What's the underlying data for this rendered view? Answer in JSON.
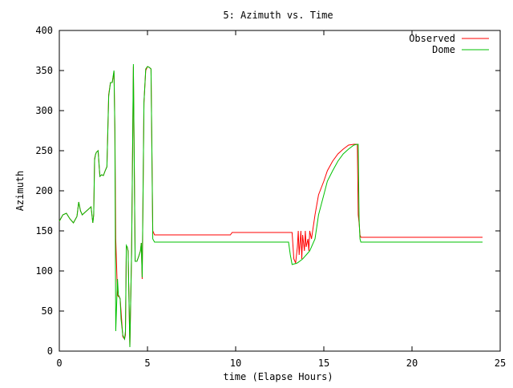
{
  "chart_data": {
    "type": "line",
    "title": "5: Azimuth vs. Time",
    "xlabel": "time (Elapse Hours)",
    "ylabel": "Azimuth",
    "xlim": [
      0,
      25
    ],
    "ylim": [
      0,
      400
    ],
    "xticks": [
      0,
      5,
      10,
      15,
      20,
      25
    ],
    "yticks": [
      0,
      50,
      100,
      150,
      200,
      250,
      300,
      350,
      400
    ],
    "grid": false,
    "legend_position": "top-right",
    "series": [
      {
        "name": "Observed",
        "color": "#ff0000",
        "x": [
          0,
          0.2,
          0.4,
          0.6,
          0.8,
          1.0,
          1.1,
          1.2,
          1.3,
          1.4,
          1.6,
          1.8,
          1.9,
          1.95,
          2.0,
          2.05,
          2.1,
          2.2,
          2.3,
          2.4,
          2.5,
          2.6,
          2.7,
          2.8,
          2.9,
          3.0,
          3.1,
          3.15,
          3.2,
          3.3,
          3.35,
          3.4,
          3.45,
          3.5,
          3.6,
          3.7,
          3.75,
          3.8,
          3.85,
          3.9,
          4.0,
          4.1,
          4.2,
          4.3,
          4.4,
          4.5,
          4.6,
          4.65,
          4.7,
          4.8,
          4.9,
          5.0,
          5.1,
          5.2,
          5.25,
          5.3,
          5.4,
          5.5,
          5.55,
          5.6,
          5.65,
          5.7,
          5.8,
          6.0,
          9.7,
          9.8,
          13.0,
          13.1,
          13.2,
          13.3,
          13.4,
          13.5,
          13.55,
          13.6,
          13.7,
          13.75,
          13.8,
          13.9,
          13.95,
          14.0,
          14.1,
          14.15,
          14.2,
          14.3,
          14.4,
          14.5,
          14.7,
          15.0,
          15.2,
          15.5,
          15.8,
          16.1,
          16.4,
          16.7,
          16.9,
          16.95,
          17.0,
          17.05,
          17.1,
          18.0,
          24.0
        ],
        "values": [
          162,
          170,
          172,
          165,
          160,
          168,
          186,
          175,
          170,
          172,
          176,
          180,
          160,
          170,
          240,
          245,
          248,
          250,
          218,
          220,
          219,
          225,
          230,
          320,
          335,
          335,
          348,
          280,
          140,
          70,
          68,
          68,
          65,
          50,
          18,
          15,
          20,
          130,
          130,
          125,
          5,
          125,
          355,
          112,
          112,
          118,
          125,
          135,
          90,
          310,
          350,
          355,
          354,
          352,
          250,
          150,
          145,
          145,
          145,
          145,
          145,
          145,
          145,
          145,
          145,
          148,
          148,
          148,
          148,
          115,
          110,
          130,
          150,
          120,
          150,
          115,
          145,
          125,
          150,
          130,
          140,
          125,
          150,
          140,
          155,
          170,
          195,
          212,
          225,
          237,
          246,
          252,
          257,
          258,
          258,
          170,
          160,
          145,
          142,
          142,
          142
        ]
      },
      {
        "name": "Dome",
        "color": "#00c000",
        "x": [
          0,
          0.2,
          0.4,
          0.6,
          0.8,
          1.0,
          1.1,
          1.2,
          1.3,
          1.4,
          1.6,
          1.8,
          1.9,
          1.95,
          2.0,
          2.05,
          2.1,
          2.2,
          2.3,
          2.4,
          2.5,
          2.6,
          2.7,
          2.8,
          2.9,
          3.0,
          3.1,
          3.15,
          3.2,
          3.3,
          3.35,
          3.4,
          3.45,
          3.5,
          3.6,
          3.7,
          3.75,
          3.8,
          3.85,
          3.9,
          4.0,
          4.1,
          4.2,
          4.3,
          4.4,
          4.5,
          4.6,
          4.65,
          4.7,
          4.8,
          4.9,
          5.0,
          5.1,
          5.2,
          5.25,
          5.3,
          5.4,
          5.5,
          5.55,
          5.6,
          5.65,
          5.7,
          6.0,
          13.0,
          13.1,
          13.2,
          13.5,
          13.8,
          14.0,
          14.2,
          14.5,
          14.7,
          15.0,
          15.2,
          15.5,
          15.8,
          16.1,
          16.4,
          16.7,
          16.9,
          16.95,
          17.0,
          17.05,
          17.1,
          18.0,
          24.0
        ],
        "values": [
          162,
          170,
          172,
          165,
          160,
          168,
          186,
          175,
          170,
          172,
          176,
          180,
          160,
          170,
          238,
          245,
          248,
          250,
          218,
          220,
          219,
          225,
          230,
          318,
          335,
          335,
          350,
          275,
          25,
          90,
          70,
          68,
          65,
          40,
          20,
          15,
          25,
          132,
          130,
          125,
          5,
          125,
          358,
          112,
          112,
          118,
          125,
          135,
          92,
          310,
          352,
          355,
          354,
          352,
          250,
          140,
          136,
          136,
          136,
          136,
          136,
          136,
          136,
          136,
          120,
          108,
          110,
          115,
          120,
          125,
          140,
          170,
          195,
          212,
          225,
          237,
          246,
          252,
          257,
          258,
          258,
          165,
          140,
          136,
          136,
          136
        ]
      }
    ]
  }
}
